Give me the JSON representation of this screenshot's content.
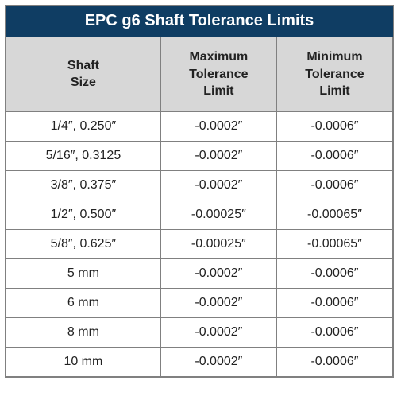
{
  "table": {
    "title": "EPC g6 Shaft Tolerance Limits",
    "title_bg": "#0f3d63",
    "title_color": "#ffffff",
    "title_fontsize": 20,
    "header_bg": "#d7d7d7",
    "header_color": "#222222",
    "header_fontsize": 16,
    "cell_color": "#222222",
    "cell_fontsize": 16,
    "border_color": "#808080",
    "columns": [
      {
        "label_line1": "Shaft",
        "label_line2": "Size",
        "width_pct": 40
      },
      {
        "label_line1": "Maximum",
        "label_line2": "Tolerance",
        "label_line3": "Limit",
        "width_pct": 30
      },
      {
        "label_line1": "Minimum",
        "label_line2": "Tolerance",
        "label_line3": "Limit",
        "width_pct": 30
      }
    ],
    "rows": [
      {
        "size": "1/4″, 0.250″",
        "max": "-0.0002″",
        "min": "-0.0006″"
      },
      {
        "size": "5/16″, 0.3125",
        "max": "-0.0002″",
        "min": "-0.0006″"
      },
      {
        "size": "3/8″, 0.375″",
        "max": "-0.0002″",
        "min": "-0.0006″"
      },
      {
        "size": "1/2″, 0.500″",
        "max": "-0.00025″",
        "min": "-0.00065″"
      },
      {
        "size": "5/8″, 0.625″",
        "max": "-0.00025″",
        "min": "-0.00065″"
      },
      {
        "size": "5 mm",
        "max": "-0.0002″",
        "min": "-0.0006″"
      },
      {
        "size": "6 mm",
        "max": "-0.0002″",
        "min": "-0.0006″"
      },
      {
        "size": "8 mm",
        "max": "-0.0002″",
        "min": "-0.0006″"
      },
      {
        "size": "10 mm",
        "max": "-0.0002″",
        "min": "-0.0006″"
      }
    ]
  }
}
